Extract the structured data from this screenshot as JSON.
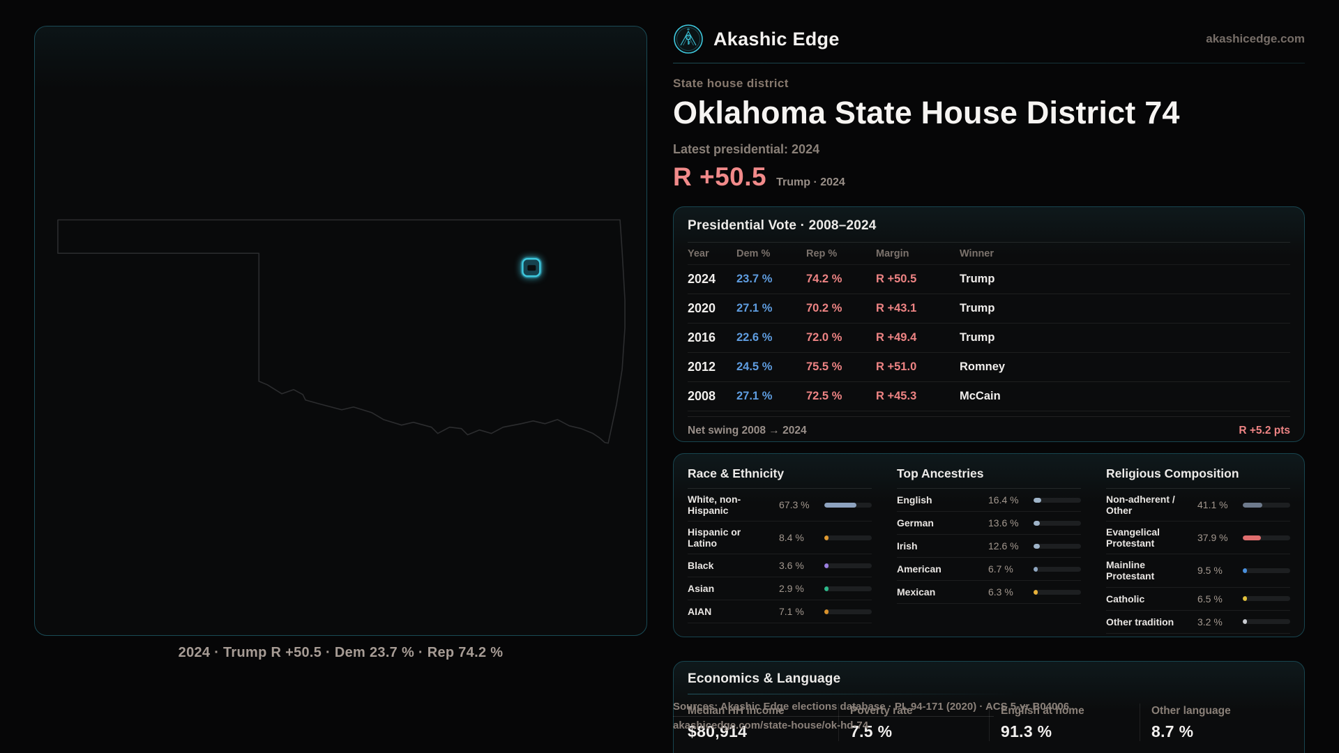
{
  "brand": {
    "name": "Akashic Edge",
    "domain": "akashicedge.com"
  },
  "map": {
    "caption": "2024 · Trump R +50.5 · Dem 23.7 % · Rep 74.2 %",
    "highlight_color": "#3ec8dd"
  },
  "header": {
    "kicker": "State house district",
    "title": "Oklahoma State House District 74",
    "latest_label": "Latest presidential: 2024",
    "headline_margin": "R +50.5",
    "headline_sub": "Trump · 2024",
    "margin_color": "#f18a8a"
  },
  "presidential": {
    "title": "Presidential Vote · 2008–2024",
    "columns": [
      "Year",
      "Dem %",
      "Rep %",
      "Margin",
      "Winner"
    ],
    "rows": [
      {
        "year": "2024",
        "dem": "23.7 %",
        "rep": "74.2 %",
        "margin": "R +50.5",
        "winner": "Trump"
      },
      {
        "year": "2020",
        "dem": "27.1 %",
        "rep": "70.2 %",
        "margin": "R +43.1",
        "winner": "Trump"
      },
      {
        "year": "2016",
        "dem": "22.6 %",
        "rep": "72.0 %",
        "margin": "R +49.4",
        "winner": "Trump"
      },
      {
        "year": "2012",
        "dem": "24.5 %",
        "rep": "75.5 %",
        "margin": "R +51.0",
        "winner": "Romney"
      },
      {
        "year": "2008",
        "dem": "27.1 %",
        "rep": "72.5 %",
        "margin": "R +45.3",
        "winner": "McCain"
      }
    ],
    "net_swing_label": "Net swing 2008 → 2024",
    "net_swing_value": "R +5.2 pts",
    "dem_color": "#5f9de0",
    "rep_color": "#ee8484"
  },
  "demographics": {
    "sections": [
      {
        "title": "Race & Ethnicity",
        "rows": [
          {
            "label": "White, non-Hispanic",
            "value": "67.3 %",
            "pct": 67.3,
            "color": "#8ea3bf"
          },
          {
            "label": "Hispanic or Latino",
            "value": "8.4 %",
            "pct": 8.4,
            "color": "#e09a31"
          },
          {
            "label": "Black",
            "value": "3.6 %",
            "pct": 3.6,
            "color": "#9b7fe0"
          },
          {
            "label": "Asian",
            "value": "2.9 %",
            "pct": 2.9,
            "color": "#2db98a"
          },
          {
            "label": "AIAN",
            "value": "7.1 %",
            "pct": 7.1,
            "color": "#d9922c"
          }
        ]
      },
      {
        "title": "Top Ancestries",
        "rows": [
          {
            "label": "English",
            "value": "16.4 %",
            "pct": 16.4,
            "color": "#9fb4c9"
          },
          {
            "label": "German",
            "value": "13.6 %",
            "pct": 13.6,
            "color": "#9fb4c9"
          },
          {
            "label": "Irish",
            "value": "12.6 %",
            "pct": 12.6,
            "color": "#9fb4c9"
          },
          {
            "label": "American",
            "value": "6.7 %",
            "pct": 6.7,
            "color": "#8fa6c0"
          },
          {
            "label": "Mexican",
            "value": "6.3 %",
            "pct": 6.3,
            "color": "#e8b23a"
          }
        ]
      },
      {
        "title": "Religious Composition",
        "rows": [
          {
            "label": "Non-adherent / Other",
            "value": "41.1 %",
            "pct": 41.1,
            "color": "#6e7a8c"
          },
          {
            "label": "Evangelical Protestant",
            "value": "37.9 %",
            "pct": 37.9,
            "color": "#e06e6e"
          },
          {
            "label": "Mainline Protestant",
            "value": "9.5 %",
            "pct": 9.5,
            "color": "#4a90dd"
          },
          {
            "label": "Catholic",
            "value": "6.5 %",
            "pct": 6.5,
            "color": "#e3c13c"
          },
          {
            "label": "Other tradition",
            "value": "3.2 %",
            "pct": 3.2,
            "color": "#c9ccd1"
          }
        ]
      }
    ]
  },
  "economics": {
    "title": "Economics & Language",
    "stats": [
      {
        "label": "Median HH income",
        "value": "$80,914"
      },
      {
        "label": "Poverty rate",
        "value": "7.5 %"
      },
      {
        "label": "English at home",
        "value": "91.3 %"
      },
      {
        "label": "Other language",
        "value": "8.7 %"
      }
    ]
  },
  "footer": {
    "sources_line": "Sources: Akashic Edge elections database · PL 94-171 (2020) · ACS 5-yr B04006",
    "permalink": "akashicedge.com/state-house/ok-hd-74"
  }
}
